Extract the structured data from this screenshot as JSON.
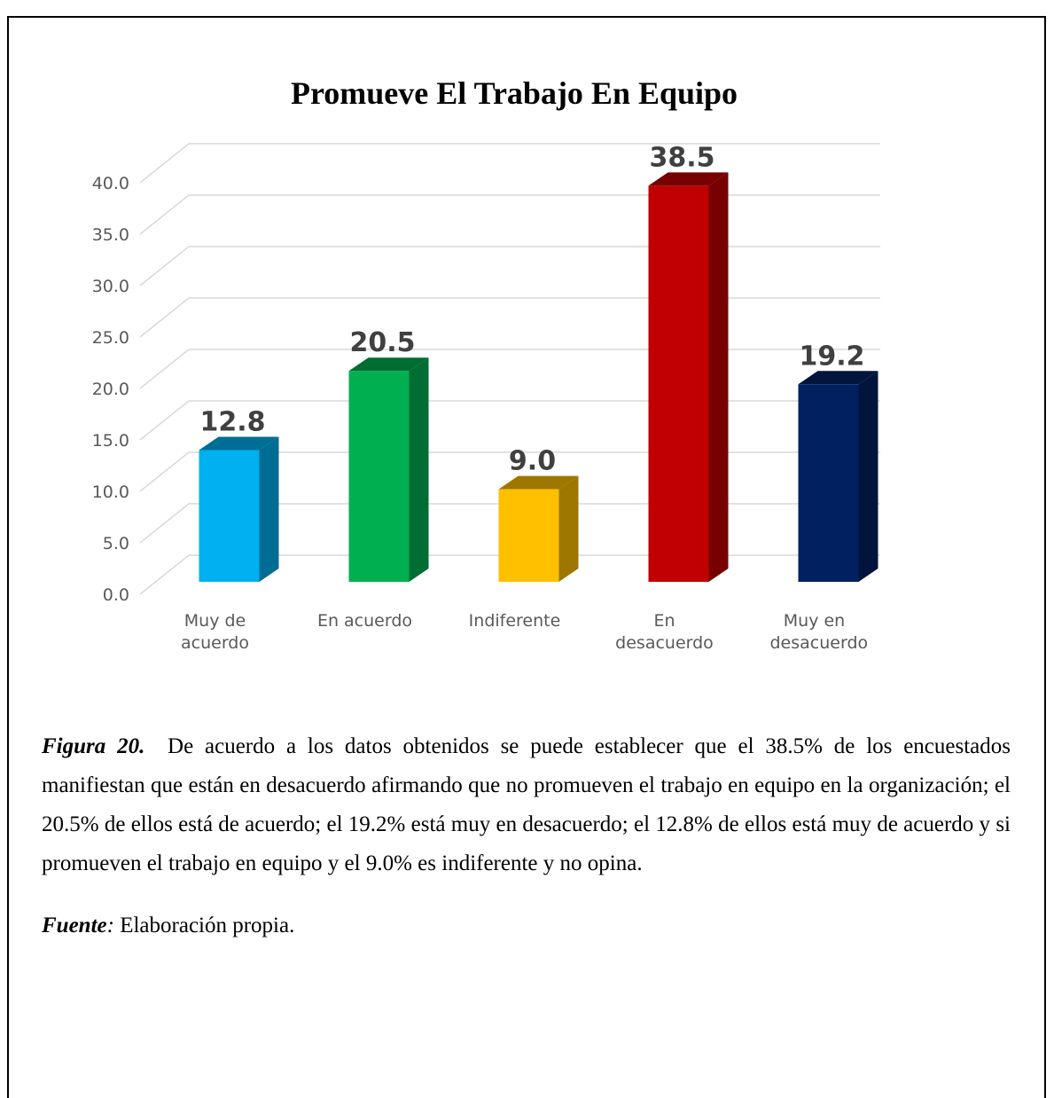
{
  "chart_data": {
    "type": "bar3d",
    "title": "Promueve El Trabajo En Equipo",
    "categories": [
      "Muy de acuerdo",
      "En acuerdo",
      "Indiferente",
      "En desacuerdo",
      "Muy en desacuerdo"
    ],
    "values": [
      12.8,
      20.5,
      9.0,
      38.5,
      19.2
    ],
    "value_labels": [
      "12.8",
      "20.5",
      "9.0",
      "38.5",
      "19.2"
    ],
    "colors": [
      "#00b0f0",
      "#00b050",
      "#ffc000",
      "#c00000",
      "#002060"
    ],
    "ylim": [
      0,
      40
    ],
    "yticks": [
      {
        "value": 0,
        "label": "0.0"
      },
      {
        "value": 5,
        "label": "5.0"
      },
      {
        "value": 10,
        "label": "10.0"
      },
      {
        "value": 15,
        "label": "15.0"
      },
      {
        "value": 20,
        "label": "20.0"
      },
      {
        "value": 25,
        "label": "25.0"
      },
      {
        "value": 30,
        "label": "30.0"
      },
      {
        "value": 35,
        "label": "35.0"
      },
      {
        "value": 40,
        "label": "40.0"
      }
    ],
    "grid": true
  },
  "caption": {
    "figure_label": "Figura 20.",
    "text": "De acuerdo a los datos obtenidos se puede establecer que el 38.5% de los encuestados manifiestan que están en desacuerdo afirmando que no promueven el trabajo en equipo en la organización; el 20.5% de ellos está de acuerdo; el 19.2% está muy en desacuerdo; el 12.8% de ellos está muy de acuerdo y si promueven el trabajo en equipo y el 9.0% es indiferente y no opina.",
    "source_label": "Fuente",
    "source_sep": ":",
    "source_text": "Elaboración propia."
  }
}
